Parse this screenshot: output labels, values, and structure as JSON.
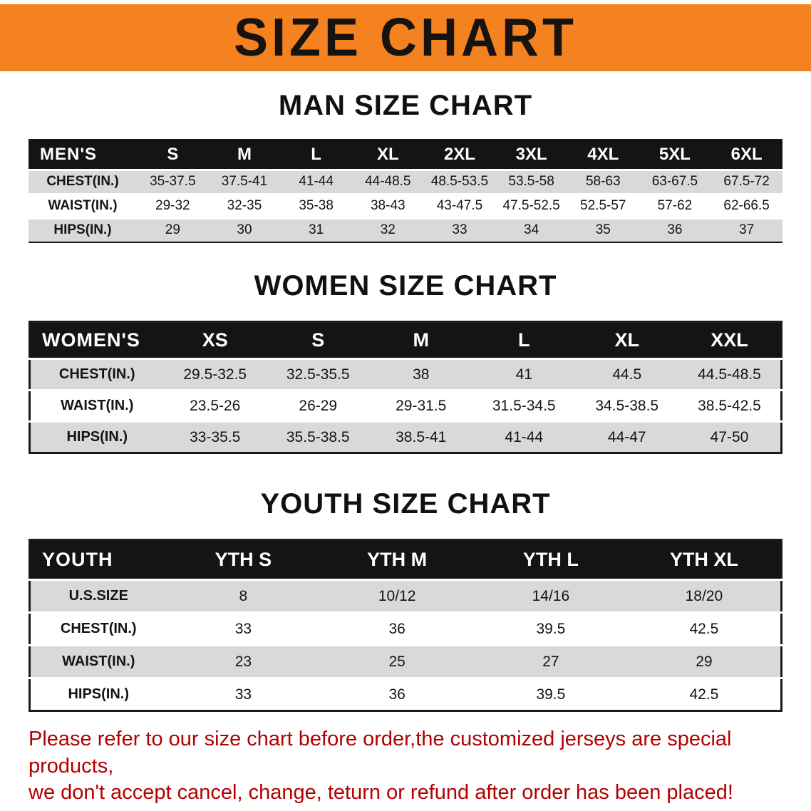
{
  "banner": {
    "title": "SIZE CHART",
    "bg_color": "#F58220"
  },
  "sections": [
    {
      "id": "men",
      "heading": "MAN SIZE CHART",
      "table": {
        "header": [
          "MEN'S",
          "S",
          "M",
          "L",
          "XL",
          "2XL",
          "3XL",
          "4XL",
          "5XL",
          "6XL"
        ],
        "rows": [
          [
            "CHEST(IN.)",
            "35-37.5",
            "37.5-41",
            "41-44",
            "44-48.5",
            "48.5-53.5",
            "53.5-58",
            "58-63",
            "63-67.5",
            "67.5-72"
          ],
          [
            "WAIST(IN.)",
            "29-32",
            "32-35",
            "35-38",
            "38-43",
            "43-47.5",
            "47.5-52.5",
            "52.5-57",
            "57-62",
            "62-66.5"
          ],
          [
            "HIPS(IN.)",
            "29",
            "30",
            "31",
            "32",
            "33",
            "34",
            "35",
            "36",
            "37"
          ]
        ]
      }
    },
    {
      "id": "women",
      "heading": "WOMEN SIZE CHART",
      "table": {
        "header": [
          "WOMEN'S",
          "XS",
          "S",
          "M",
          "L",
          "XL",
          "XXL"
        ],
        "rows": [
          [
            "CHEST(IN.)",
            "29.5-32.5",
            "32.5-35.5",
            "38",
            "41",
            "44.5",
            "44.5-48.5"
          ],
          [
            "WAIST(IN.)",
            "23.5-26",
            "26-29",
            "29-31.5",
            "31.5-34.5",
            "34.5-38.5",
            "38.5-42.5"
          ],
          [
            "HIPS(IN.)",
            "33-35.5",
            "35.5-38.5",
            "38.5-41",
            "41-44",
            "44-47",
            "47-50"
          ]
        ]
      }
    },
    {
      "id": "youth",
      "heading": "YOUTH SIZE CHART",
      "table": {
        "header": [
          "YOUTH",
          "YTH S",
          "YTH M",
          "YTH L",
          "YTH XL"
        ],
        "rows": [
          [
            "U.S.SIZE",
            "8",
            "10/12",
            "14/16",
            "18/20"
          ],
          [
            "CHEST(IN.)",
            "33",
            "36",
            "39.5",
            "42.5"
          ],
          [
            "WAIST(IN.)",
            "23",
            "25",
            "27",
            "29"
          ],
          [
            "HIPS(IN.)",
            "33",
            "36",
            "39.5",
            "42.5"
          ]
        ]
      }
    }
  ],
  "disclaimer": {
    "line1": "Please refer to our size chart before order,the customized jerseys are special products,",
    "line2": "we don't accept cancel, change, teturn or refund after order has been placed!",
    "color": "#B20000"
  }
}
